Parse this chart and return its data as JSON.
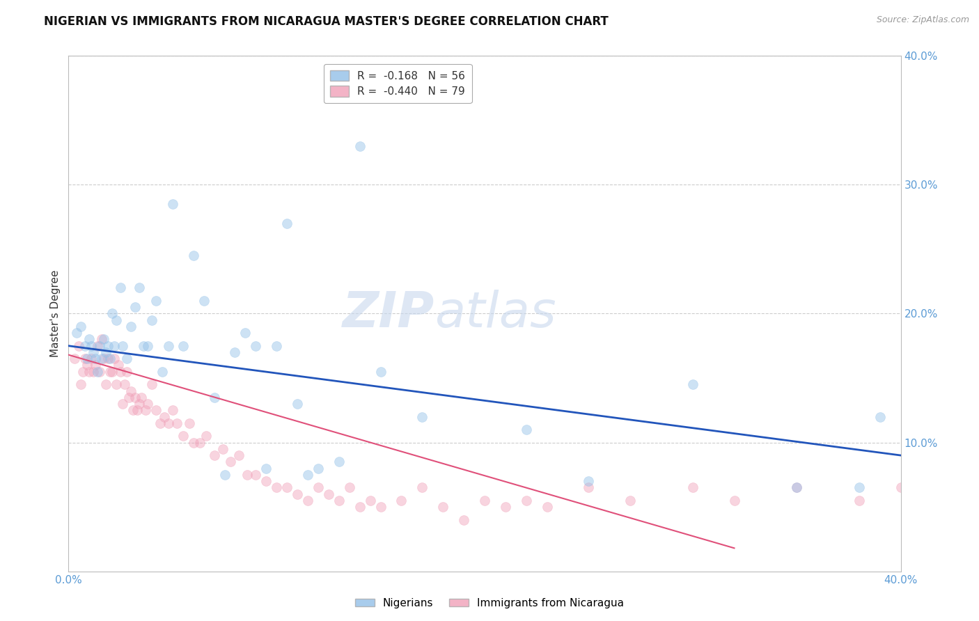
{
  "title": "NIGERIAN VS IMMIGRANTS FROM NICARAGUA MASTER'S DEGREE CORRELATION CHART",
  "source": "Source: ZipAtlas.com",
  "ylabel": "Master's Degree",
  "right_yticks": [
    "40.0%",
    "30.0%",
    "20.0%",
    "10.0%"
  ],
  "right_ytick_vals": [
    0.4,
    0.3,
    0.2,
    0.1
  ],
  "xmin": 0.0,
  "xmax": 0.4,
  "ymin": 0.0,
  "ymax": 0.4,
  "legend_R_blue": "R =  -0.168",
  "legend_N_blue": "N = 56",
  "legend_R_pink": "R =  -0.440",
  "legend_N_pink": "N = 79",
  "series_blue": {
    "color": "#92c0e8",
    "scatter_x": [
      0.004,
      0.006,
      0.008,
      0.009,
      0.01,
      0.011,
      0.012,
      0.013,
      0.014,
      0.015,
      0.016,
      0.017,
      0.018,
      0.019,
      0.02,
      0.021,
      0.022,
      0.023,
      0.025,
      0.026,
      0.028,
      0.03,
      0.032,
      0.034,
      0.036,
      0.038,
      0.04,
      0.042,
      0.045,
      0.048,
      0.05,
      0.055,
      0.06,
      0.065,
      0.07,
      0.075,
      0.08,
      0.085,
      0.09,
      0.095,
      0.1,
      0.105,
      0.11,
      0.115,
      0.12,
      0.13,
      0.14,
      0.15,
      0.17,
      0.19,
      0.22,
      0.25,
      0.3,
      0.35,
      0.38,
      0.39
    ],
    "scatter_y": [
      0.185,
      0.19,
      0.175,
      0.165,
      0.18,
      0.175,
      0.17,
      0.165,
      0.155,
      0.175,
      0.165,
      0.18,
      0.17,
      0.175,
      0.165,
      0.2,
      0.175,
      0.195,
      0.22,
      0.175,
      0.165,
      0.19,
      0.205,
      0.22,
      0.175,
      0.175,
      0.195,
      0.21,
      0.155,
      0.175,
      0.285,
      0.175,
      0.245,
      0.21,
      0.135,
      0.075,
      0.17,
      0.185,
      0.175,
      0.08,
      0.175,
      0.27,
      0.13,
      0.075,
      0.08,
      0.085,
      0.33,
      0.155,
      0.12,
      0.37,
      0.11,
      0.07,
      0.145,
      0.065,
      0.065,
      0.12
    ],
    "line_x": [
      0.0,
      0.4
    ],
    "line_y": [
      0.175,
      0.09
    ],
    "line_color": "#2255bb"
  },
  "series_pink": {
    "color": "#f0a0b8",
    "scatter_x": [
      0.003,
      0.005,
      0.006,
      0.007,
      0.008,
      0.009,
      0.01,
      0.011,
      0.012,
      0.013,
      0.014,
      0.015,
      0.016,
      0.017,
      0.018,
      0.019,
      0.02,
      0.021,
      0.022,
      0.023,
      0.024,
      0.025,
      0.026,
      0.027,
      0.028,
      0.029,
      0.03,
      0.031,
      0.032,
      0.033,
      0.034,
      0.035,
      0.037,
      0.038,
      0.04,
      0.042,
      0.044,
      0.046,
      0.048,
      0.05,
      0.052,
      0.055,
      0.058,
      0.06,
      0.063,
      0.066,
      0.07,
      0.074,
      0.078,
      0.082,
      0.086,
      0.09,
      0.095,
      0.1,
      0.105,
      0.11,
      0.115,
      0.12,
      0.125,
      0.13,
      0.135,
      0.14,
      0.145,
      0.15,
      0.16,
      0.17,
      0.18,
      0.19,
      0.2,
      0.21,
      0.22,
      0.23,
      0.25,
      0.27,
      0.3,
      0.32,
      0.35,
      0.38,
      0.4
    ],
    "scatter_y": [
      0.165,
      0.175,
      0.145,
      0.155,
      0.165,
      0.16,
      0.155,
      0.165,
      0.155,
      0.16,
      0.175,
      0.155,
      0.18,
      0.165,
      0.145,
      0.165,
      0.155,
      0.155,
      0.165,
      0.145,
      0.16,
      0.155,
      0.13,
      0.145,
      0.155,
      0.135,
      0.14,
      0.125,
      0.135,
      0.125,
      0.13,
      0.135,
      0.125,
      0.13,
      0.145,
      0.125,
      0.115,
      0.12,
      0.115,
      0.125,
      0.115,
      0.105,
      0.115,
      0.1,
      0.1,
      0.105,
      0.09,
      0.095,
      0.085,
      0.09,
      0.075,
      0.075,
      0.07,
      0.065,
      0.065,
      0.06,
      0.055,
      0.065,
      0.06,
      0.055,
      0.065,
      0.05,
      0.055,
      0.05,
      0.055,
      0.065,
      0.05,
      0.04,
      0.055,
      0.05,
      0.055,
      0.05,
      0.065,
      0.055,
      0.065,
      0.055,
      0.065,
      0.055,
      0.065
    ],
    "line_x": [
      0.0,
      0.32
    ],
    "line_y": [
      0.168,
      0.018
    ],
    "line_color": "#e0507a"
  },
  "watermark_zip": "ZIP",
  "watermark_atlas": "atlas",
  "bg_color": "#ffffff",
  "grid_color": "#cccccc",
  "tick_color": "#5b9bd5",
  "title_fontsize": 12,
  "axis_label_fontsize": 11,
  "tick_fontsize": 11,
  "scatter_size": 100,
  "scatter_alpha": 0.45
}
